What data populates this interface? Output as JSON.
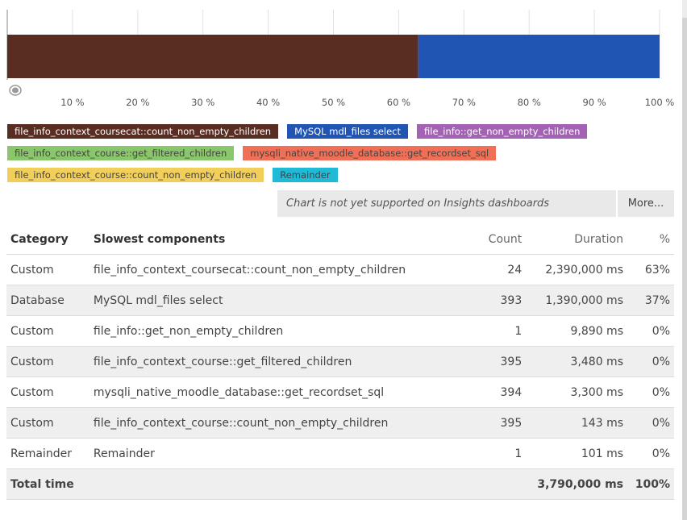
{
  "chart_data": {
    "type": "bar",
    "orientation": "horizontal",
    "stacked": true,
    "series": [
      {
        "name": "file_info_context_coursecat::count_non_empty_children",
        "values": [
          63
        ],
        "color": "#5a2d22"
      },
      {
        "name": "MySQL mdl_files select",
        "values": [
          37
        ],
        "color": "#2155b3"
      }
    ],
    "xlim": [
      0,
      100
    ],
    "xticks": [
      "10 %",
      "20 %",
      "30 %",
      "40 %",
      "50 %",
      "60 %",
      "70 %",
      "80 %",
      "90 %",
      "100 %"
    ],
    "xtick_values": [
      10,
      20,
      30,
      40,
      50,
      60,
      70,
      80,
      90,
      100
    ],
    "grid": true
  },
  "legend": {
    "rows": [
      [
        {
          "label": "file_info_context_coursecat::count_non_empty_children",
          "color": "#5a2d22",
          "text": "light"
        },
        {
          "label": "MySQL mdl_files select",
          "color": "#2155b3",
          "text": "light"
        },
        {
          "label": "file_info::get_non_empty_children",
          "color": "#a362b3",
          "text": "light"
        }
      ],
      [
        {
          "label": "file_info_context_course::get_filtered_children",
          "color": "#8ac66b",
          "text": "dark"
        },
        {
          "label": "mysqli_native_moodle_database::get_recordset_sql",
          "color": "#ef7056",
          "text": "dark"
        }
      ],
      [
        {
          "label": "file_info_context_course::count_non_empty_children",
          "color": "#f2cf5b",
          "text": "dark"
        },
        {
          "label": "Remainder",
          "color": "#1fbad6",
          "text": "dark"
        }
      ]
    ]
  },
  "insights": {
    "message": "Chart is not yet supported on Insights dashboards",
    "more_label": "More..."
  },
  "table": {
    "headers": {
      "category": "Category",
      "component": "Slowest components",
      "count": "Count",
      "duration": "Duration",
      "percent": "%"
    },
    "rows": [
      {
        "category": "Custom",
        "component": "file_info_context_coursecat::count_non_empty_children",
        "count": "24",
        "duration": "2,390,000 ms",
        "percent": "63%"
      },
      {
        "category": "Database",
        "component": "MySQL mdl_files select",
        "count": "393",
        "duration": "1,390,000 ms",
        "percent": "37%"
      },
      {
        "category": "Custom",
        "component": "file_info::get_non_empty_children",
        "count": "1",
        "duration": "9,890 ms",
        "percent": "0%"
      },
      {
        "category": "Custom",
        "component": "file_info_context_course::get_filtered_children",
        "count": "395",
        "duration": "3,480 ms",
        "percent": "0%"
      },
      {
        "category": "Custom",
        "component": "mysqli_native_moodle_database::get_recordset_sql",
        "count": "394",
        "duration": "3,300 ms",
        "percent": "0%"
      },
      {
        "category": "Custom",
        "component": "file_info_context_course::count_non_empty_children",
        "count": "395",
        "duration": "143 ms",
        "percent": "0%"
      },
      {
        "category": "Remainder",
        "component": "Remainder",
        "count": "1",
        "duration": "101 ms",
        "percent": "0%"
      }
    ],
    "total": {
      "label": "Total time",
      "duration": "3,790,000 ms",
      "percent": "100%"
    }
  }
}
